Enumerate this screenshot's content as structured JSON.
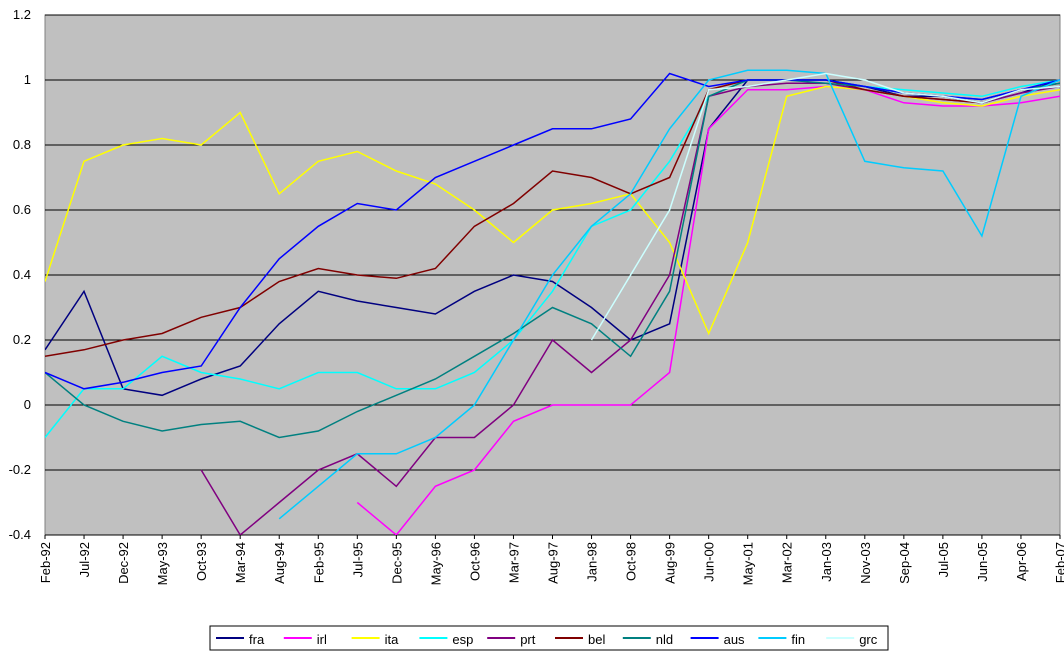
{
  "chart_data": {
    "type": "line",
    "categories": [
      "Feb-92",
      "Jul-92",
      "Dec-92",
      "May-93",
      "Oct-93",
      "Mar-94",
      "Aug-94",
      "Feb-95",
      "Jul-95",
      "Dec-95",
      "May-96",
      "Oct-96",
      "Mar-97",
      "Aug-97",
      "Jan-98",
      "Oct-98",
      "Aug-99",
      "Jun-00",
      "May-01",
      "Mar-02",
      "Jan-03",
      "Nov-03",
      "Sep-04",
      "Jul-05",
      "Jun-05",
      "Apr-06",
      "Feb-07"
    ],
    "ylim": [
      -0.4,
      1.2
    ],
    "yticks": [
      -0.4,
      -0.2,
      0,
      0.2,
      0.4,
      0.6,
      0.8,
      1,
      1.2
    ],
    "grid": true,
    "legend": "bottom",
    "series": [
      {
        "name": "fra",
        "color": "#000080",
        "values": [
          0.17,
          0.35,
          0.05,
          0.03,
          0.08,
          0.12,
          0.25,
          0.35,
          0.32,
          0.3,
          0.28,
          0.35,
          0.4,
          0.38,
          0.3,
          0.2,
          0.25,
          0.85,
          1.0,
          1.0,
          1.0,
          0.98,
          0.95,
          0.95,
          0.93,
          0.96,
          1.0
        ]
      },
      {
        "name": "irl",
        "color": "#ff00ff",
        "values": [
          null,
          null,
          null,
          null,
          null,
          null,
          null,
          null,
          -0.3,
          -0.4,
          -0.25,
          -0.2,
          -0.05,
          0.0,
          0.0,
          0.0,
          0.1,
          0.85,
          0.97,
          0.97,
          0.98,
          0.97,
          0.93,
          0.92,
          0.92,
          0.93,
          0.95
        ]
      },
      {
        "name": "ita",
        "color": "#ffff00",
        "values": [
          0.38,
          0.75,
          0.8,
          0.82,
          0.8,
          0.9,
          0.65,
          0.75,
          0.78,
          0.72,
          0.68,
          0.6,
          0.5,
          0.6,
          0.62,
          0.65,
          0.5,
          0.22,
          0.5,
          0.95,
          0.98,
          0.97,
          0.95,
          0.93,
          0.92,
          0.95,
          0.97
        ]
      },
      {
        "name": "esp",
        "color": "#00ffff",
        "values": [
          -0.1,
          0.05,
          0.05,
          0.15,
          0.1,
          0.08,
          0.05,
          0.1,
          0.1,
          0.05,
          0.05,
          0.1,
          0.2,
          0.35,
          0.55,
          0.6,
          0.75,
          0.95,
          1.0,
          1.0,
          1.0,
          0.98,
          0.97,
          0.96,
          0.95,
          0.98,
          1.0
        ]
      },
      {
        "name": "prt",
        "color": "#800080",
        "values": [
          null,
          null,
          null,
          null,
          -0.2,
          -0.4,
          -0.3,
          -0.2,
          -0.15,
          -0.25,
          -0.1,
          -0.1,
          0.0,
          0.2,
          0.1,
          0.2,
          0.4,
          0.95,
          0.98,
          0.99,
          0.99,
          0.97,
          0.95,
          0.94,
          0.93,
          0.96,
          0.98
        ]
      },
      {
        "name": "bel",
        "color": "#800000",
        "values": [
          0.15,
          0.17,
          0.2,
          0.22,
          0.27,
          0.3,
          0.38,
          0.42,
          0.4,
          0.39,
          0.42,
          0.55,
          0.62,
          0.72,
          0.7,
          0.65,
          0.7,
          0.97,
          1.0,
          1.0,
          1.0,
          0.97,
          0.95,
          0.94,
          0.93,
          0.97,
          0.99
        ]
      },
      {
        "name": "nld",
        "color": "#008080",
        "values": [
          0.1,
          0.0,
          -0.05,
          -0.08,
          -0.06,
          -0.05,
          -0.1,
          -0.08,
          -0.02,
          0.03,
          0.08,
          0.15,
          0.22,
          0.3,
          0.25,
          0.15,
          0.35,
          0.95,
          1.0,
          1.0,
          0.99,
          0.98,
          0.96,
          0.95,
          0.94,
          0.97,
          0.99
        ]
      },
      {
        "name": "aus",
        "color": "#0000ff",
        "values": [
          0.1,
          0.05,
          0.07,
          0.1,
          0.12,
          0.3,
          0.45,
          0.55,
          0.62,
          0.6,
          0.7,
          0.75,
          0.8,
          0.85,
          0.85,
          0.88,
          1.02,
          0.98,
          1.0,
          1.0,
          1.0,
          0.98,
          0.96,
          0.95,
          0.94,
          0.97,
          1.0
        ]
      },
      {
        "name": "fin",
        "color": "#00ccff",
        "values": [
          null,
          null,
          null,
          null,
          null,
          null,
          -0.35,
          -0.25,
          -0.15,
          -0.15,
          -0.1,
          0.0,
          0.2,
          0.4,
          0.55,
          0.65,
          0.85,
          1.0,
          1.03,
          1.03,
          1.02,
          0.75,
          0.73,
          0.72,
          0.52,
          0.95,
          1.0
        ]
      },
      {
        "name": "grc",
        "color": "#ccffff",
        "values": [
          null,
          null,
          null,
          null,
          null,
          null,
          null,
          null,
          null,
          null,
          null,
          null,
          null,
          null,
          0.2,
          0.4,
          0.6,
          0.97,
          0.98,
          1.0,
          1.02,
          1.0,
          0.96,
          0.95,
          0.93,
          0.97,
          0.98
        ]
      }
    ]
  }
}
